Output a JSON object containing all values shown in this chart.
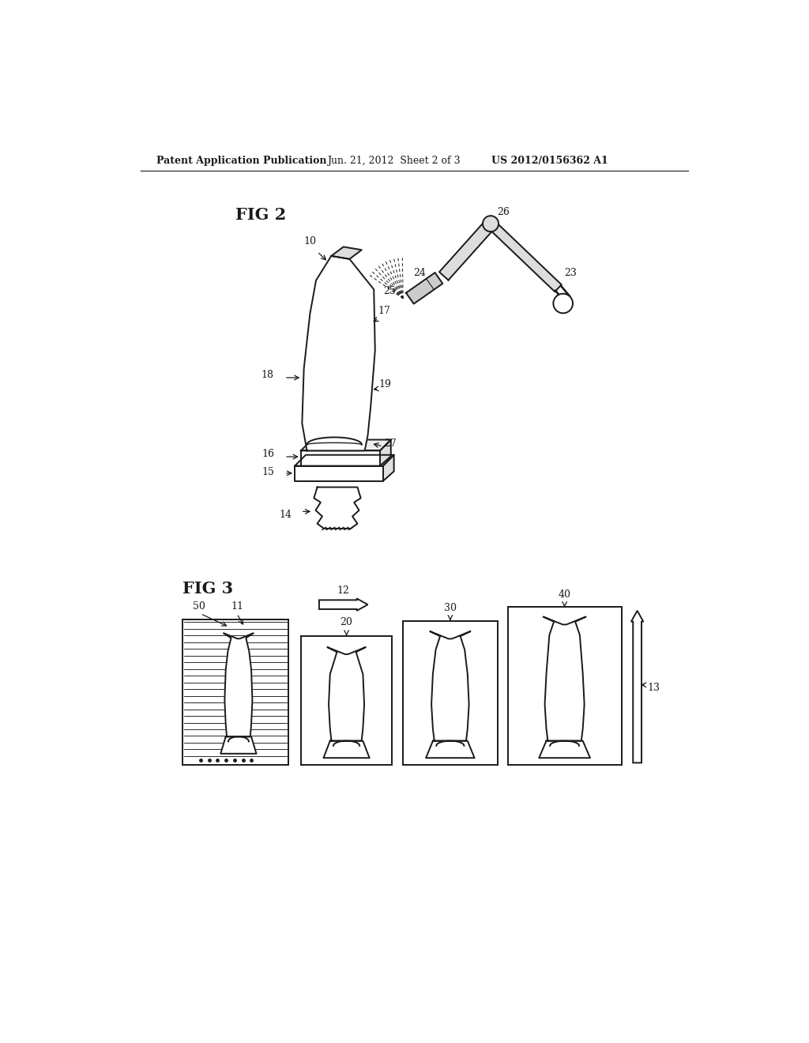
{
  "header_left": "Patent Application Publication",
  "header_center": "Jun. 21, 2012  Sheet 2 of 3",
  "header_right": "US 2012/0156362 A1",
  "fig2_label": "FIG 2",
  "fig3_label": "FIG 3",
  "background_color": "#ffffff",
  "line_color": "#1a1a1a",
  "text_color": "#1a1a1a"
}
